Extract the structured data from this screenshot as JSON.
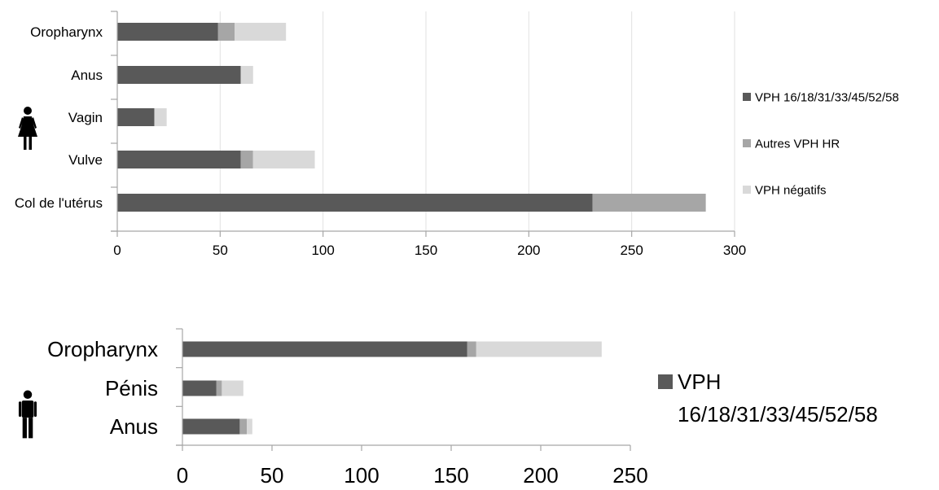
{
  "chart_data": [
    {
      "type": "bar",
      "orientation": "horizontal",
      "stacked": true,
      "group_icon": "female-icon",
      "categories": [
        "Col de l'utérus",
        "Vulve",
        "Vagin",
        "Anus",
        "Oropharynx"
      ],
      "series": [
        {
          "name": "VPH 16/18/31/33/45/52/58",
          "values": [
            231,
            60,
            18,
            60,
            49
          ],
          "color": "#595959"
        },
        {
          "name": "Autres VPH HR",
          "values": [
            55,
            6,
            0,
            0,
            8
          ],
          "color": "#a6a6a6"
        },
        {
          "name": "VPH négatifs",
          "values": [
            0,
            30,
            6,
            6,
            25
          ],
          "color": "#d9d9d9"
        }
      ],
      "xlim": [
        0,
        300
      ],
      "xticks": [
        "0",
        "50",
        "100",
        "150",
        "200",
        "250",
        "300"
      ],
      "grid": true,
      "legend_position": "right"
    },
    {
      "type": "bar",
      "orientation": "horizontal",
      "stacked": true,
      "group_icon": "male-icon",
      "categories": [
        "Anus",
        "Pénis",
        "Oropharynx"
      ],
      "series": [
        {
          "name": "VPH 16/18/31/33/45/52/58",
          "values": [
            32,
            19,
            159
          ],
          "color": "#595959"
        },
        {
          "name": "",
          "values": [
            4,
            3,
            5
          ],
          "color": "#a6a6a6"
        },
        {
          "name": "",
          "values": [
            3,
            12,
            70
          ],
          "color": "#d9d9d9"
        }
      ],
      "xlim": [
        0,
        250
      ],
      "xticks": [
        "0",
        "50",
        "100",
        "150",
        "200",
        "250"
      ],
      "grid": false,
      "legend_position": "right",
      "legend_lines": [
        "VPH",
        "16/18/31/33/45/52/58"
      ]
    }
  ]
}
